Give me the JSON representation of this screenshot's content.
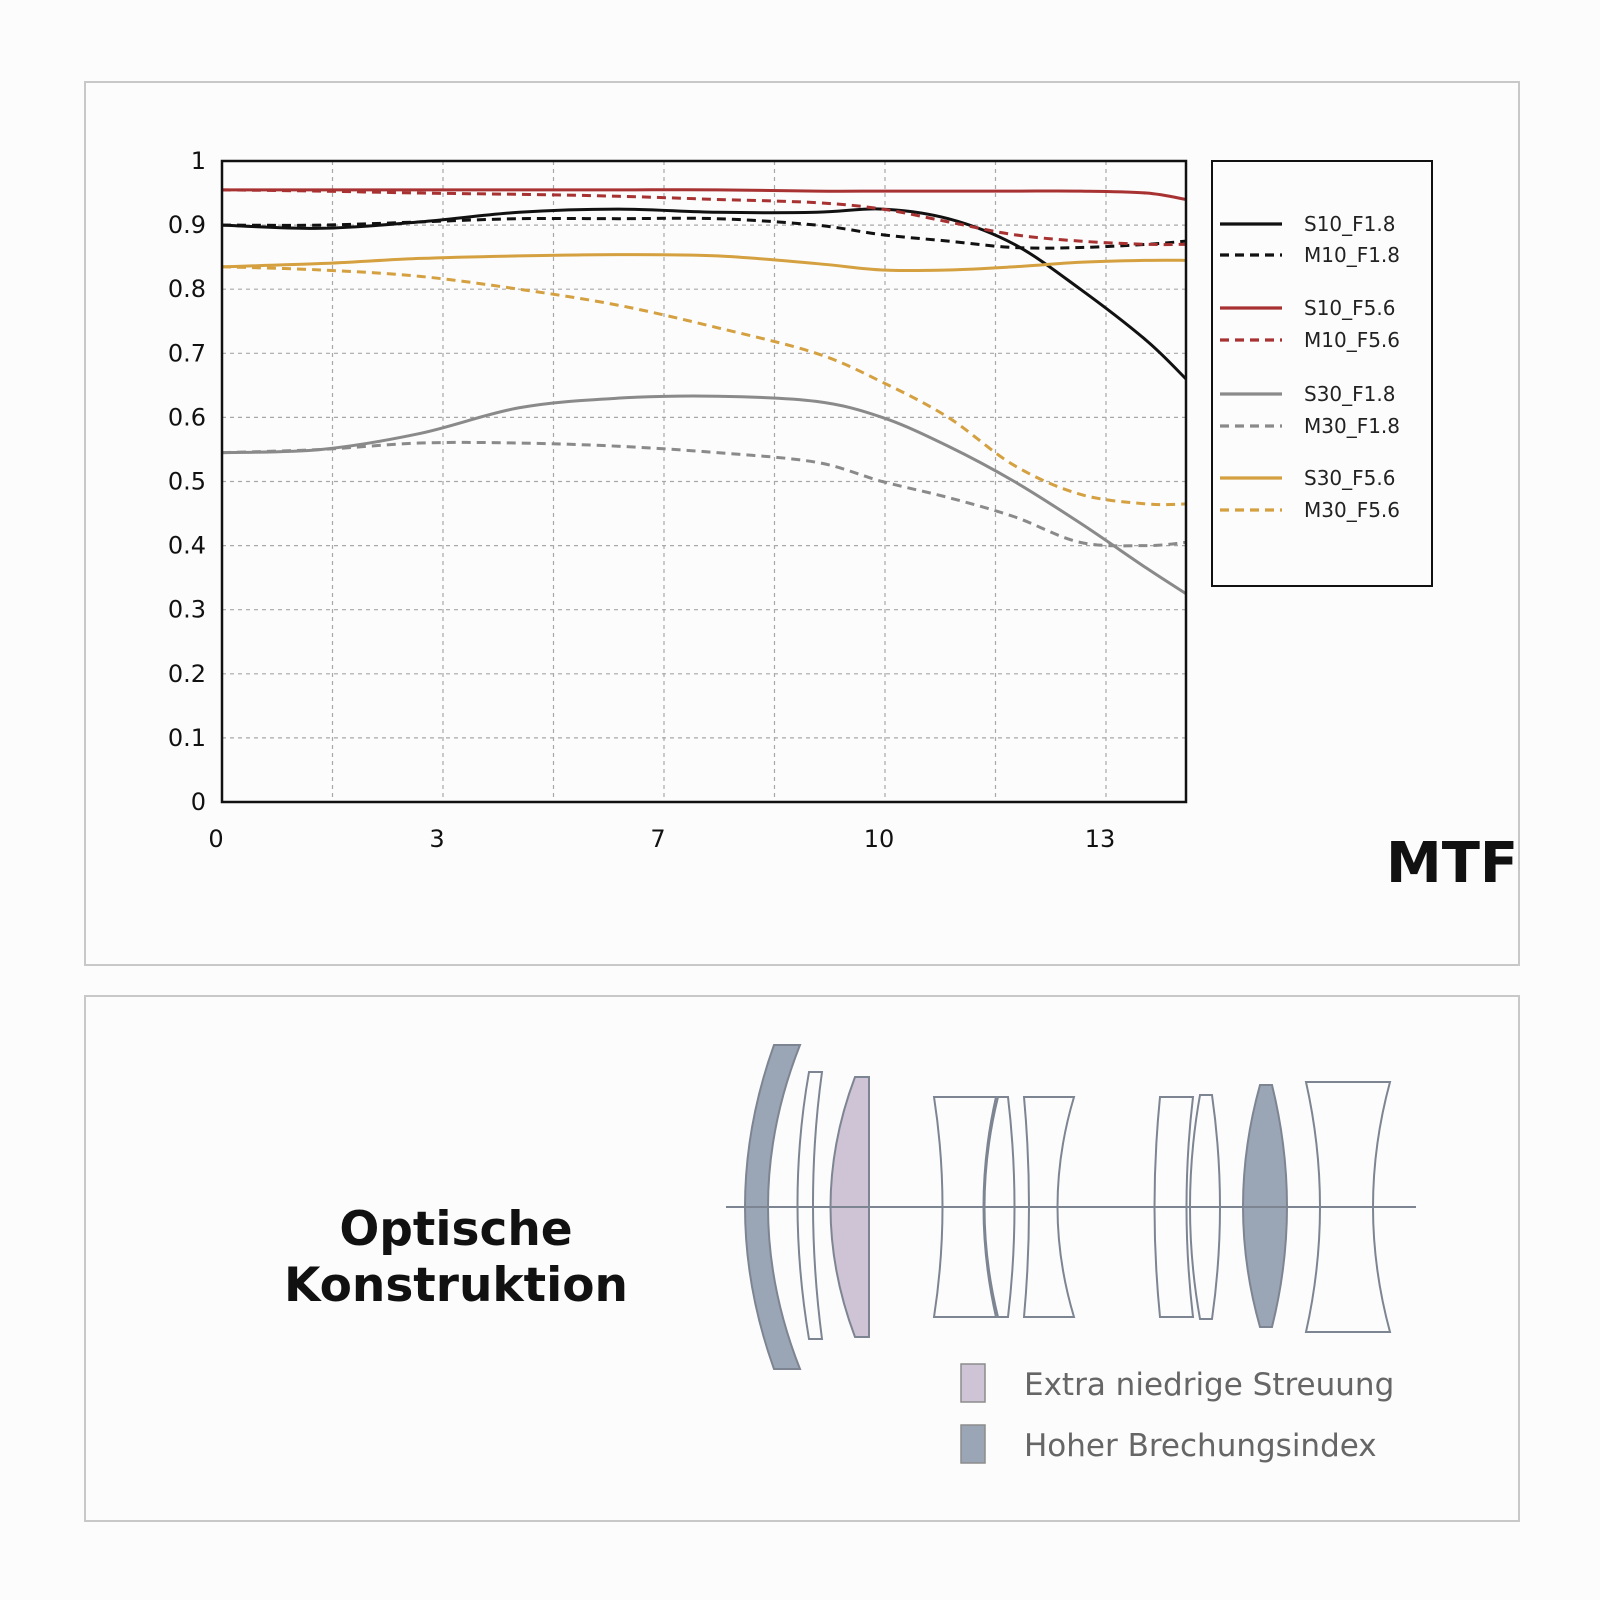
{
  "chart_data": {
    "type": "line",
    "title": "MTF",
    "xlabel": "",
    "ylabel": "",
    "xlim": [
      0,
      14.6
    ],
    "ylim": [
      0,
      1
    ],
    "x_ticks": [
      0,
      3,
      7,
      10,
      13
    ],
    "x_tick_labels": [
      "0",
      "3",
      "7",
      "10",
      "13"
    ],
    "y_ticks": [
      0,
      0.1,
      0.2,
      0.3,
      0.4,
      0.5,
      0.6,
      0.7,
      0.8,
      0.9,
      1
    ],
    "y_tick_labels": [
      "0",
      "0.1",
      "0.2",
      "0.3",
      "0.4",
      "0.5",
      "0.6",
      "0.7",
      "0.8",
      "0.9",
      "1"
    ],
    "grid": true,
    "legend_position": "right",
    "series": [
      {
        "name": "S10_F1.8",
        "color": "#111111",
        "dashed": false,
        "x": [
          0,
          1.5,
          3,
          4.5,
          6,
          7.5,
          9,
          10,
          11,
          12,
          13,
          14,
          14.6
        ],
        "y": [
          0.9,
          0.895,
          0.905,
          0.92,
          0.925,
          0.92,
          0.92,
          0.925,
          0.91,
          0.87,
          0.8,
          0.72,
          0.66
        ]
      },
      {
        "name": "M10_F1.8",
        "color": "#111111",
        "dashed": true,
        "x": [
          0,
          1.5,
          3,
          4.5,
          6,
          7.5,
          9,
          10,
          11,
          12,
          13,
          14,
          14.6
        ],
        "y": [
          0.9,
          0.9,
          0.905,
          0.91,
          0.91,
          0.91,
          0.9,
          0.885,
          0.875,
          0.865,
          0.865,
          0.87,
          0.875
        ]
      },
      {
        "name": "S10_F5.6",
        "color": "#a83232",
        "dashed": false,
        "x": [
          0,
          1.5,
          3,
          4.5,
          6,
          7.5,
          9,
          10,
          11,
          12,
          13,
          14,
          14.6
        ],
        "y": [
          0.955,
          0.955,
          0.955,
          0.955,
          0.955,
          0.955,
          0.953,
          0.953,
          0.953,
          0.953,
          0.953,
          0.95,
          0.94
        ]
      },
      {
        "name": "M10_F5.6",
        "color": "#a83232",
        "dashed": true,
        "x": [
          0,
          1.5,
          3,
          4.5,
          6,
          7.5,
          9,
          10,
          11,
          12,
          13,
          14,
          14.6
        ],
        "y": [
          0.955,
          0.953,
          0.95,
          0.948,
          0.945,
          0.94,
          0.935,
          0.925,
          0.905,
          0.885,
          0.875,
          0.87,
          0.87
        ]
      },
      {
        "name": "S30_F1.8",
        "color": "#8a8a8a",
        "dashed": false,
        "x": [
          0,
          1.5,
          3,
          4.5,
          6,
          7.5,
          9,
          10,
          11,
          12,
          13,
          14,
          14.6
        ],
        "y": [
          0.545,
          0.55,
          0.575,
          0.615,
          0.63,
          0.633,
          0.625,
          0.6,
          0.555,
          0.5,
          0.435,
          0.365,
          0.325
        ]
      },
      {
        "name": "M30_F1.8",
        "color": "#8a8a8a",
        "dashed": true,
        "x": [
          0,
          1.5,
          3,
          4.5,
          6,
          7.5,
          9,
          10,
          11,
          12,
          13,
          14,
          14.6
        ],
        "y": [
          0.545,
          0.55,
          0.56,
          0.56,
          0.555,
          0.545,
          0.53,
          0.5,
          0.475,
          0.445,
          0.405,
          0.4,
          0.405
        ]
      },
      {
        "name": "S30_F5.6",
        "color": "#d4a040",
        "dashed": false,
        "x": [
          0,
          1.5,
          3,
          4.5,
          6,
          7.5,
          9,
          10,
          11,
          12,
          13,
          14,
          14.6
        ],
        "y": [
          0.835,
          0.84,
          0.848,
          0.852,
          0.854,
          0.852,
          0.84,
          0.83,
          0.83,
          0.835,
          0.842,
          0.845,
          0.845
        ]
      },
      {
        "name": "M30_F5.6",
        "color": "#d4a040",
        "dashed": true,
        "x": [
          0,
          1.5,
          3,
          4.5,
          6,
          7.5,
          9,
          10,
          11,
          12,
          13,
          14,
          14.6
        ],
        "y": [
          0.835,
          0.83,
          0.82,
          0.8,
          0.775,
          0.74,
          0.7,
          0.655,
          0.6,
          0.525,
          0.48,
          0.465,
          0.465
        ]
      }
    ]
  },
  "optics": {
    "title_line1": "Optische",
    "title_line2": "Konstruktion",
    "legend": [
      {
        "label": "Extra niedrige Streuung",
        "color": "#cfc3d6"
      },
      {
        "label": "Hoher Brechungsindex",
        "color": "#9aa5b5"
      }
    ]
  }
}
